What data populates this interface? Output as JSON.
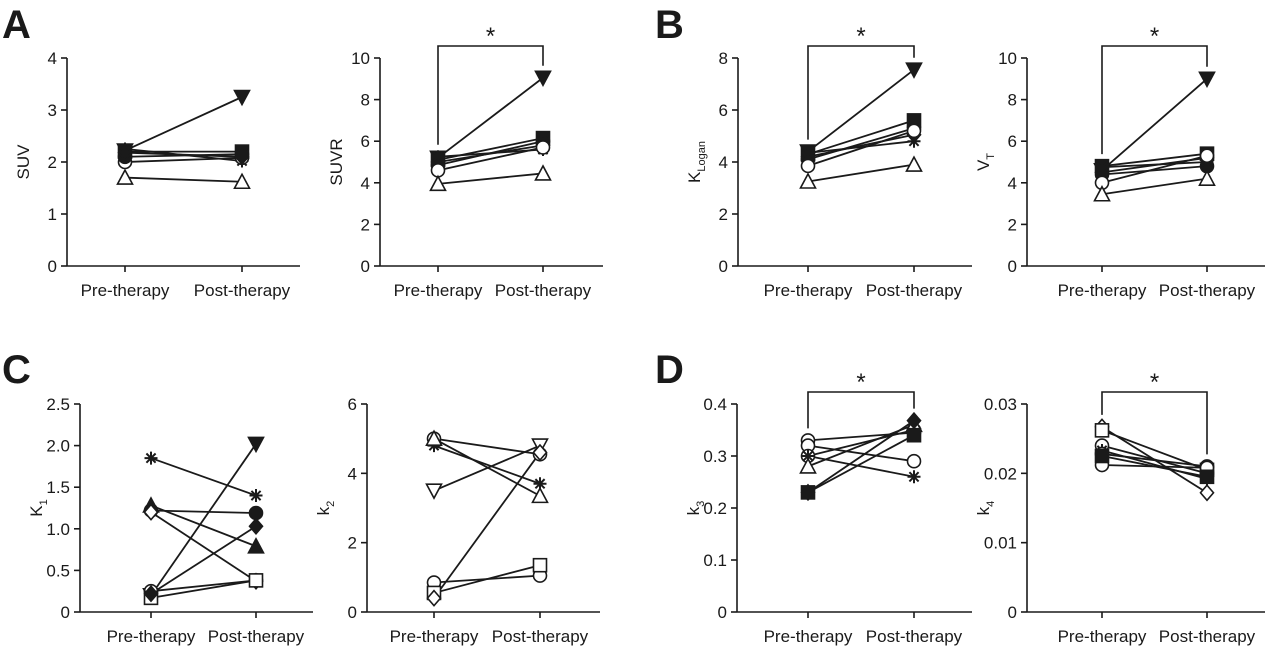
{
  "panels": [
    "A",
    "B",
    "C",
    "D"
  ],
  "chart_data": [
    {
      "type": "line",
      "panel": "A",
      "categories": [
        "Pre-therapy",
        "Post-therapy"
      ],
      "ylabel": "SUV",
      "ylabel_sub": "",
      "ylim": [
        0,
        4
      ],
      "yticks": [
        0,
        1,
        2,
        3,
        4
      ],
      "ytick_labels": [
        "0",
        "1",
        "2",
        "3",
        "4"
      ],
      "significance": "",
      "series": [
        {
          "marker": "tri-down-filled",
          "values": [
            2.22,
            3.25
          ]
        },
        {
          "marker": "asterisk",
          "values": [
            2.25,
            2.02
          ]
        },
        {
          "marker": "square-filled",
          "values": [
            2.2,
            2.2
          ]
        },
        {
          "marker": "circle-open",
          "values": [
            2.0,
            2.08
          ]
        },
        {
          "marker": "circle-filled",
          "values": [
            2.1,
            2.15
          ]
        },
        {
          "marker": "diamond-filled",
          "values": [
            2.18,
            2.1
          ]
        },
        {
          "marker": "tri-up-open",
          "values": [
            1.7,
            1.62
          ]
        }
      ]
    },
    {
      "type": "line",
      "panel": "A",
      "categories": [
        "Pre-therapy",
        "Post-therapy"
      ],
      "ylabel": "SUVR",
      "ylabel_sub": "",
      "ylim": [
        0,
        10
      ],
      "yticks": [
        0,
        2,
        4,
        6,
        8,
        10
      ],
      "ytick_labels": [
        "0",
        "2",
        "4",
        "6",
        "8",
        "10"
      ],
      "significance": "*",
      "series": [
        {
          "marker": "tri-down-filled",
          "values": [
            5.2,
            9.05
          ]
        },
        {
          "marker": "square-filled",
          "values": [
            5.1,
            6.15
          ]
        },
        {
          "marker": "circle-filled",
          "values": [
            4.85,
            6.0
          ]
        },
        {
          "marker": "diamond-filled",
          "values": [
            5.0,
            5.8
          ]
        },
        {
          "marker": "asterisk",
          "values": [
            5.25,
            5.6
          ]
        },
        {
          "marker": "circle-open",
          "values": [
            4.6,
            5.7
          ]
        },
        {
          "marker": "tri-up-open",
          "values": [
            3.95,
            4.45
          ]
        }
      ]
    },
    {
      "type": "line",
      "panel": "B",
      "categories": [
        "Pre-therapy",
        "Post-therapy"
      ],
      "ylabel": "K",
      "ylabel_sub": "Logan",
      "ylim": [
        0,
        8
      ],
      "yticks": [
        0,
        2,
        4,
        6,
        8
      ],
      "ytick_labels": [
        "0",
        "2",
        "4",
        "6",
        "8"
      ],
      "significance": "*",
      "series": [
        {
          "marker": "tri-down-filled",
          "values": [
            4.4,
            7.55
          ]
        },
        {
          "marker": "square-filled",
          "values": [
            4.3,
            5.6
          ]
        },
        {
          "marker": "circle-filled",
          "values": [
            4.1,
            5.3
          ]
        },
        {
          "marker": "diamond-filled",
          "values": [
            4.2,
            5.05
          ]
        },
        {
          "marker": "asterisk",
          "values": [
            4.35,
            4.8
          ]
        },
        {
          "marker": "circle-open",
          "values": [
            3.85,
            5.2
          ]
        },
        {
          "marker": "tri-up-open",
          "values": [
            3.25,
            3.9
          ]
        }
      ]
    },
    {
      "type": "line",
      "panel": "B",
      "categories": [
        "Pre-therapy",
        "Post-therapy"
      ],
      "ylabel": "V",
      "ylabel_sub": "T",
      "ylim": [
        0,
        10
      ],
      "yticks": [
        0,
        2,
        4,
        6,
        8,
        10
      ],
      "ytick_labels": [
        "0",
        "2",
        "4",
        "6",
        "8",
        "10"
      ],
      "significance": "*",
      "series": [
        {
          "marker": "tri-down-filled",
          "values": [
            4.6,
            9.0
          ]
        },
        {
          "marker": "square-filled",
          "values": [
            4.8,
            5.4
          ]
        },
        {
          "marker": "circle-filled",
          "values": [
            4.4,
            4.8
          ]
        },
        {
          "marker": "diamond-filled",
          "values": [
            4.5,
            5.2
          ]
        },
        {
          "marker": "asterisk",
          "values": [
            4.75,
            5.0
          ]
        },
        {
          "marker": "circle-open",
          "values": [
            4.0,
            5.3
          ]
        },
        {
          "marker": "tri-up-open",
          "values": [
            3.45,
            4.2
          ]
        }
      ]
    },
    {
      "type": "line",
      "panel": "C",
      "categories": [
        "Pre-therapy",
        "Post-therapy"
      ],
      "ylabel": "K",
      "ylabel_sub": "1",
      "ylim": [
        0,
        2.5
      ],
      "yticks": [
        0,
        0.5,
        1.0,
        1.5,
        2.0,
        2.5
      ],
      "ytick_labels": [
        "0",
        "0.5",
        "1.0",
        "1.5",
        "2.0",
        "2.5"
      ],
      "significance": "",
      "series": [
        {
          "marker": "asterisk",
          "values": [
            1.85,
            1.4
          ]
        },
        {
          "marker": "tri-up-filled",
          "values": [
            1.28,
            0.79
          ]
        },
        {
          "marker": "circle-filled",
          "values": [
            1.22,
            1.19
          ]
        },
        {
          "marker": "diamond-open",
          "values": [
            1.2,
            0.37
          ]
        },
        {
          "marker": "tri-down-filled",
          "values": [
            0.2,
            2.02
          ]
        },
        {
          "marker": "circle-open",
          "values": [
            0.25,
            0.38
          ]
        },
        {
          "marker": "square-open",
          "values": [
            0.17,
            0.38
          ]
        },
        {
          "marker": "diamond-filled",
          "values": [
            0.22,
            1.03
          ]
        }
      ]
    },
    {
      "type": "line",
      "panel": "C",
      "categories": [
        "Pre-therapy",
        "Post-therapy"
      ],
      "ylabel": "k",
      "ylabel_sub": "2",
      "ylim": [
        0,
        6
      ],
      "yticks": [
        0,
        2,
        4,
        6
      ],
      "ytick_labels": [
        "0",
        "2",
        "4",
        "6"
      ],
      "significance": "",
      "series": [
        {
          "marker": "circle-open",
          "values": [
            5.0,
            4.55
          ]
        },
        {
          "marker": "asterisk",
          "values": [
            4.8,
            3.7
          ]
        },
        {
          "marker": "tri-up-open",
          "values": [
            5.0,
            3.35
          ]
        },
        {
          "marker": "tri-down-open",
          "values": [
            3.5,
            4.8
          ]
        },
        {
          "marker": "circle-open",
          "values": [
            0.85,
            1.05
          ]
        },
        {
          "marker": "square-open",
          "values": [
            0.55,
            1.35
          ]
        },
        {
          "marker": "diamond-open",
          "values": [
            0.4,
            4.6
          ]
        }
      ]
    },
    {
      "type": "line",
      "panel": "D",
      "categories": [
        "Pre-therapy",
        "Post-therapy"
      ],
      "ylabel": "k",
      "ylabel_sub": "3",
      "ylim": [
        0,
        0.4
      ],
      "yticks": [
        0,
        0.1,
        0.2,
        0.3,
        0.4
      ],
      "ytick_labels": [
        "0",
        "0.1",
        "0.2",
        "0.3",
        "0.4"
      ],
      "significance": "*",
      "series": [
        {
          "marker": "circle-open",
          "values": [
            0.33,
            0.345
          ]
        },
        {
          "marker": "circle-open",
          "values": [
            0.32,
            0.29
          ]
        },
        {
          "marker": "circle-open",
          "values": [
            0.3,
            0.35
          ]
        },
        {
          "marker": "asterisk",
          "values": [
            0.3,
            0.26
          ]
        },
        {
          "marker": "tri-up-open",
          "values": [
            0.28,
            0.36
          ]
        },
        {
          "marker": "diamond-filled",
          "values": [
            0.23,
            0.368
          ]
        },
        {
          "marker": "square-filled",
          "values": [
            0.23,
            0.34
          ]
        }
      ]
    },
    {
      "type": "line",
      "panel": "D",
      "categories": [
        "Pre-therapy",
        "Post-therapy"
      ],
      "ylabel": "k",
      "ylabel_sub": "4",
      "ylim": [
        0,
        0.03
      ],
      "yticks": [
        0,
        0.01,
        0.02,
        0.03
      ],
      "ytick_labels": [
        "0",
        "0.01",
        "0.02",
        "0.03"
      ],
      "significance": "*",
      "series": [
        {
          "marker": "diamond-open",
          "values": [
            0.0267,
            0.0172
          ]
        },
        {
          "marker": "square-open",
          "values": [
            0.0262,
            0.0205
          ]
        },
        {
          "marker": "circle-open",
          "values": [
            0.024,
            0.02
          ]
        },
        {
          "marker": "asterisk",
          "values": [
            0.0233,
            0.0192
          ]
        },
        {
          "marker": "circle-open",
          "values": [
            0.0228,
            0.021
          ]
        },
        {
          "marker": "circle-open",
          "values": [
            0.0212,
            0.0208
          ]
        },
        {
          "marker": "square-filled",
          "values": [
            0.0225,
            0.0195
          ]
        }
      ]
    }
  ]
}
